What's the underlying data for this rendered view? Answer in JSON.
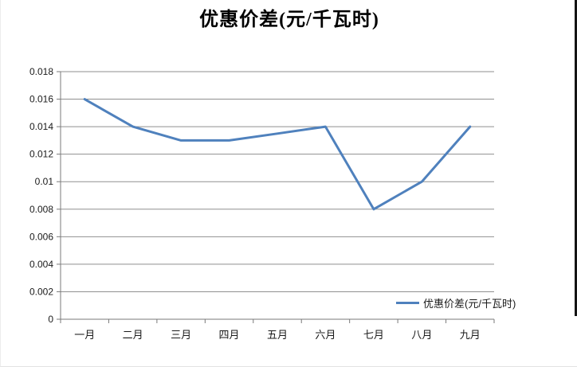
{
  "title": "优惠价差(元/千瓦时)",
  "legend": {
    "label": "优惠价差(元/千瓦时)"
  },
  "colors": {
    "series": "#4F81BD",
    "gridline": "#8f8f8f",
    "axis": "#7a7a7a",
    "text": "#1a1a1a",
    "title": "#000000"
  },
  "chart_data": {
    "type": "line",
    "title": "优惠价差(元/千瓦时)",
    "categories": [
      "一月",
      "二月",
      "三月",
      "四月",
      "五月",
      "六月",
      "七月",
      "八月",
      "九月"
    ],
    "series": [
      {
        "name": "优惠价差(元/千瓦时)",
        "values": [
          0.016,
          0.014,
          0.013,
          0.013,
          0.0135,
          0.014,
          0.008,
          0.01,
          0.014
        ]
      }
    ],
    "xlabel": "",
    "ylabel": "",
    "ylim": [
      0,
      0.018
    ],
    "ytick_step": 0.002,
    "ytick_labels": [
      "0",
      "0.002",
      "0.004",
      "0.006",
      "0.008",
      "0.01",
      "0.012",
      "0.014",
      "0.016",
      "0.018"
    ],
    "grid": "horizontal",
    "legend_position": "bottom-right-inside"
  }
}
